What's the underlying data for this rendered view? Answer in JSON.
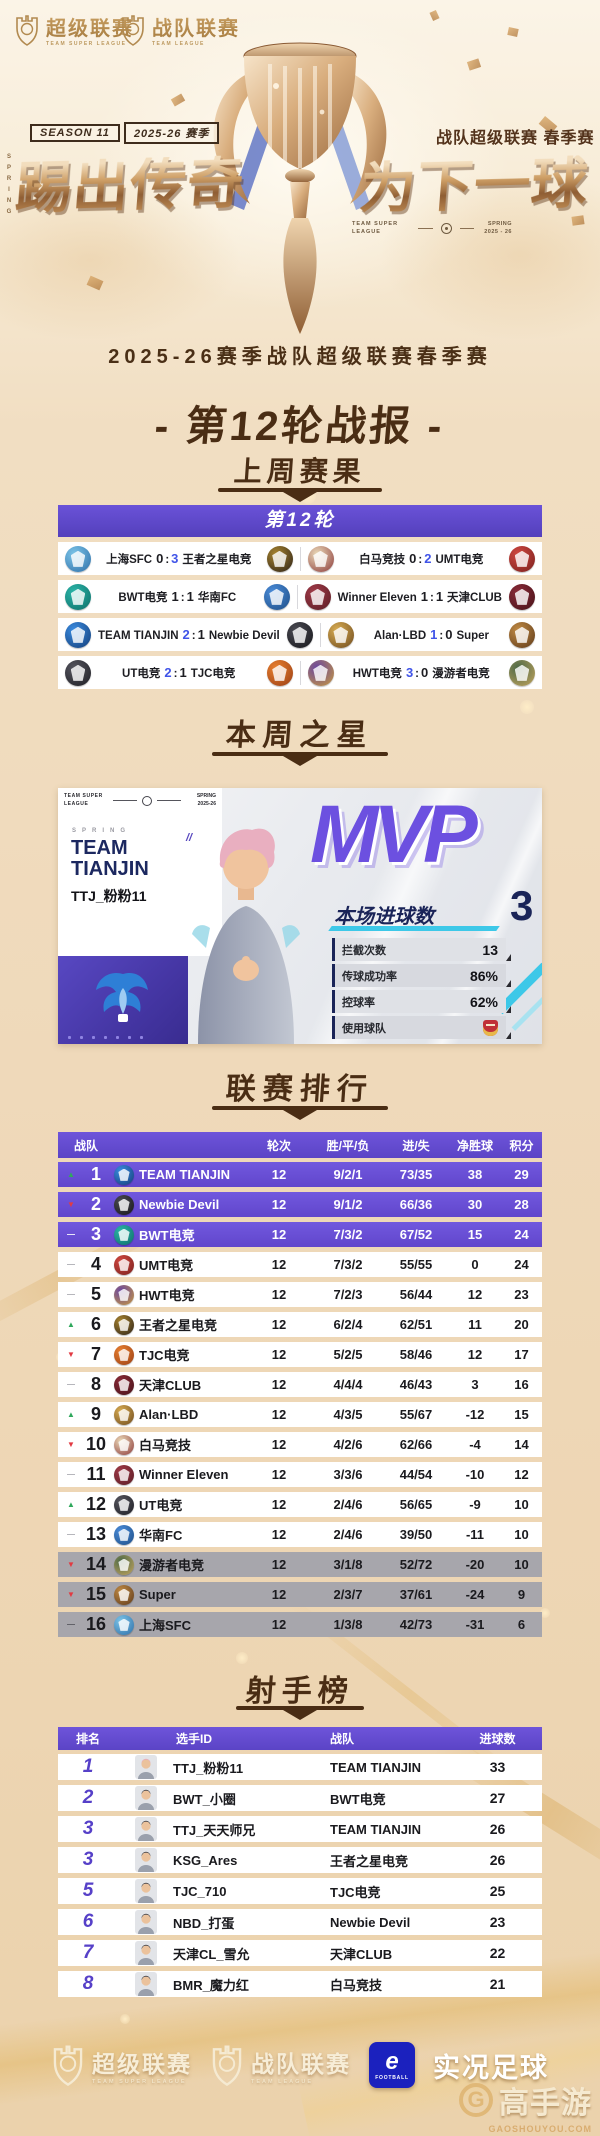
{
  "hero": {
    "logos": [
      {
        "name": "超级联赛",
        "sub": "TEAM SUPER LEAGUE"
      },
      {
        "name": "战队联赛",
        "sub": "TEAM LEAGUE"
      }
    ],
    "season_badge": "SEASON 11",
    "season_year": "2025-26 赛季",
    "right_tag": "战队超级联赛 春季赛",
    "slogan_left": "踢出传奇",
    "slogan_right": "为下一球",
    "spring_vertical": "SPRING",
    "meta_left": "TEAM SUPER LEAGUE",
    "meta_right": "SPRING 2025 - 26"
  },
  "subtitle": "2025-26赛季战队超级联赛春季赛",
  "report": {
    "title": "- 第12轮战报 -",
    "results_label": "上周赛果"
  },
  "matches": {
    "header": "第12轮",
    "rows": [
      {
        "left": {
          "home": "上海SFC",
          "hs": "0",
          "as": "3",
          "away": "王者之星电竞"
        },
        "right": {
          "home": "白马竞技",
          "hs": "0",
          "as": "2",
          "away": "UMT电竞"
        }
      },
      {
        "left": {
          "home": "BWT电竞",
          "hs": "1",
          "as": "1",
          "away": "华南FC"
        },
        "right": {
          "home": "Winner Eleven",
          "hs": "1",
          "as": "1",
          "away": "天津CLUB"
        }
      },
      {
        "left": {
          "home": "TEAM TIANJIN",
          "hs": "2",
          "as": "1",
          "away": "Newbie Devil"
        },
        "right": {
          "home": "Alan·LBD",
          "hs": "1",
          "as": "0",
          "away": "Super"
        }
      },
      {
        "left": {
          "home": "UT电竞",
          "hs": "2",
          "as": "1",
          "away": "TJC电竞"
        },
        "right": {
          "home": "HWT电竞",
          "hs": "3",
          "as": "0",
          "away": "漫游者电竞"
        }
      }
    ]
  },
  "weekly_star": {
    "section_title": "本周之星",
    "card": {
      "meta_left": "TEAM SUPER LEAGUE",
      "meta_right": "SPRING 2025-26",
      "spring_word": "SPRING",
      "team_name_line1": "TEAM",
      "team_name_line2": "TIANJIN",
      "player_id": "TTJ_粉粉11",
      "mvp_label": "MVP",
      "goals_label": "本场进球数",
      "goals_value": "3",
      "stats": [
        {
          "label": "拦截次数",
          "value": "13"
        },
        {
          "label": "传球成功率",
          "value": "86%"
        },
        {
          "label": "控球率",
          "value": "62%"
        },
        {
          "label": "使用球队",
          "value": "",
          "icon": "club-crest"
        }
      ]
    }
  },
  "league": {
    "section_title": "联赛排行",
    "columns": [
      "战队",
      "轮次",
      "胜/平/负",
      "进/失",
      "净胜球",
      "积分"
    ],
    "rows": [
      {
        "move": "up",
        "rank": "1",
        "team": "TEAM TIANJIN",
        "rounds": "12",
        "wdl": "9/2/1",
        "goals": "73/35",
        "gd": "38",
        "pts": "29"
      },
      {
        "move": "down",
        "rank": "2",
        "team": "Newbie Devil",
        "rounds": "12",
        "wdl": "9/1/2",
        "goals": "66/36",
        "gd": "30",
        "pts": "28"
      },
      {
        "move": "same",
        "rank": "3",
        "team": "BWT电竞",
        "rounds": "12",
        "wdl": "7/3/2",
        "goals": "67/52",
        "gd": "15",
        "pts": "24"
      },
      {
        "move": "same",
        "rank": "4",
        "team": "UMT电竞",
        "rounds": "12",
        "wdl": "7/3/2",
        "goals": "55/55",
        "gd": "0",
        "pts": "24"
      },
      {
        "move": "same",
        "rank": "5",
        "team": "HWT电竞",
        "rounds": "12",
        "wdl": "7/2/3",
        "goals": "56/44",
        "gd": "12",
        "pts": "23"
      },
      {
        "move": "up",
        "rank": "6",
        "team": "王者之星电竞",
        "rounds": "12",
        "wdl": "6/2/4",
        "goals": "62/51",
        "gd": "11",
        "pts": "20"
      },
      {
        "move": "down",
        "rank": "7",
        "team": "TJC电竞",
        "rounds": "12",
        "wdl": "5/2/5",
        "goals": "58/46",
        "gd": "12",
        "pts": "17"
      },
      {
        "move": "same",
        "rank": "8",
        "team": "天津CLUB",
        "rounds": "12",
        "wdl": "4/4/4",
        "goals": "46/43",
        "gd": "3",
        "pts": "16"
      },
      {
        "move": "up",
        "rank": "9",
        "team": "Alan·LBD",
        "rounds": "12",
        "wdl": "4/3/5",
        "goals": "55/67",
        "gd": "-12",
        "pts": "15"
      },
      {
        "move": "down",
        "rank": "10",
        "team": "白马竞技",
        "rounds": "12",
        "wdl": "4/2/6",
        "goals": "62/66",
        "gd": "-4",
        "pts": "14"
      },
      {
        "move": "same",
        "rank": "11",
        "team": "Winner Eleven",
        "rounds": "12",
        "wdl": "3/3/6",
        "goals": "44/54",
        "gd": "-10",
        "pts": "12"
      },
      {
        "move": "up",
        "rank": "12",
        "team": "UT电竞",
        "rounds": "12",
        "wdl": "2/4/6",
        "goals": "56/65",
        "gd": "-9",
        "pts": "10"
      },
      {
        "move": "same",
        "rank": "13",
        "team": "华南FC",
        "rounds": "12",
        "wdl": "2/4/6",
        "goals": "39/50",
        "gd": "-11",
        "pts": "10"
      },
      {
        "move": "down",
        "rank": "14",
        "team": "漫游者电竞",
        "rounds": "12",
        "wdl": "3/1/8",
        "goals": "52/72",
        "gd": "-20",
        "pts": "10"
      },
      {
        "move": "down",
        "rank": "15",
        "team": "Super",
        "rounds": "12",
        "wdl": "2/3/7",
        "goals": "37/61",
        "gd": "-24",
        "pts": "9"
      },
      {
        "move": "same",
        "rank": "16",
        "team": "上海SFC",
        "rounds": "12",
        "wdl": "1/3/8",
        "goals": "42/73",
        "gd": "-31",
        "pts": "6"
      }
    ]
  },
  "scorers": {
    "section_title": "射手榜",
    "columns": [
      "排名",
      "选手ID",
      "战队",
      "进球数"
    ],
    "rows": [
      {
        "rank": "1",
        "player": "TTJ_粉粉11",
        "team": "TEAM TIANJIN",
        "goals": "33",
        "hair": "#E8A8B8"
      },
      {
        "rank": "2",
        "player": "BWT_小圈",
        "team": "BWT电竞",
        "goals": "27",
        "hair": "#3A3A40"
      },
      {
        "rank": "3",
        "player": "TTJ_天天师兄",
        "team": "TEAM TIANJIN",
        "goals": "26",
        "hair": "#3A3A40"
      },
      {
        "rank": "3",
        "player": "KSG_Ares",
        "team": "王者之星电竞",
        "goals": "26",
        "hair": "#3A3A40"
      },
      {
        "rank": "5",
        "player": "TJC_710",
        "team": "TJC电竞",
        "goals": "25",
        "hair": "#3A3A40"
      },
      {
        "rank": "6",
        "player": "NBD_打蛋",
        "team": "Newbie Devil",
        "goals": "23",
        "hair": "#3A3A40"
      },
      {
        "rank": "7",
        "player": "天津CL_雪允",
        "team": "天津CLUB",
        "goals": "22",
        "hair": "#3A3A40"
      },
      {
        "rank": "8",
        "player": "BMR_魔力红",
        "team": "白马竞技",
        "goals": "21",
        "hair": "#3A3A40"
      }
    ]
  },
  "footer": {
    "badges": [
      {
        "name": "超级联赛",
        "sub": "TEAM SUPER LEAGUE"
      },
      {
        "name": "战队联赛",
        "sub": "TEAM LEAGUE"
      }
    ],
    "efootball_e": "e",
    "efootball_sub": "FOOTBALL",
    "game_title": "实况足球"
  },
  "watermark": {
    "g": "G",
    "brand": "高手游",
    "site": "GAOSHOUYOU.COM"
  },
  "colors": {
    "purple_header": "#5B44C6",
    "purple_row": "#6C52DC",
    "score_win_blue": "#4054E8",
    "title_brown": "#4A2D14",
    "up_green": "#2FA85C",
    "down_red": "#E23A42",
    "relegation_gray": "#A7A6AC",
    "mvp_purple": "#6C50E0",
    "cyan_accent": "#3DC8E8"
  },
  "team_colors": {
    "上海SFC": [
      "#7CC4E8",
      "#2E6FA8"
    ],
    "王者之星电竞": [
      "#A8842F",
      "#2B2118"
    ],
    "白马竞技": [
      "#EAD9B8",
      "#8C3A3A"
    ],
    "UMT电竞": [
      "#D04840",
      "#7A201E"
    ],
    "BWT电竞": [
      "#2BB5A8",
      "#0E6E68"
    ],
    "华南FC": [
      "#4A8BD8",
      "#1E4E86"
    ],
    "Winner Eleven": [
      "#A03A48",
      "#5A1C24"
    ],
    "天津CLUB": [
      "#8A2A38",
      "#461218"
    ],
    "TEAM TIANJIN": [
      "#3A8BE0",
      "#143E78"
    ],
    "Newbie Devil": [
      "#4A4A52",
      "#17171B"
    ],
    "Alan·LBD": [
      "#D8AC52",
      "#6E4A1E"
    ],
    "Super": [
      "#C08A44",
      "#5E3A1A"
    ],
    "UT电竞": [
      "#55555E",
      "#1E1E24"
    ],
    "TJC电竞": [
      "#E88030",
      "#9A3E14"
    ],
    "HWT电竞": [
      "#6A46A0",
      "#C89A3E"
    ],
    "漫游者电竞": [
      "#4E6A48",
      "#C2A45E"
    ]
  }
}
